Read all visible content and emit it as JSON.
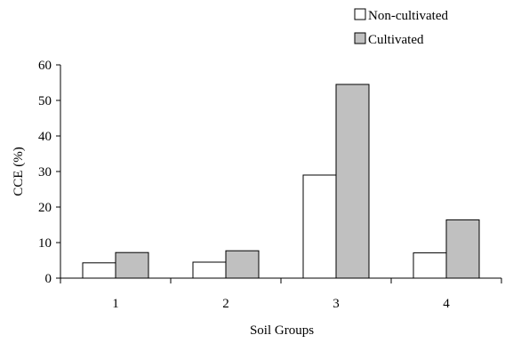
{
  "chart_data": {
    "type": "bar",
    "title": "",
    "xlabel": "Soil Groups",
    "ylabel": "CCE (%)",
    "categories": [
      "1",
      "2",
      "3",
      "4"
    ],
    "ylim": [
      0,
      60
    ],
    "yticks": [
      0,
      10,
      20,
      30,
      40,
      50,
      60
    ],
    "grid": false,
    "legend_position": "top-right",
    "series": [
      {
        "name": "Non-cultivated",
        "color": "#ffffff",
        "values": [
          4.3,
          4.5,
          29,
          7.1
        ]
      },
      {
        "name": "Cultivated",
        "color": "#c0c0c0",
        "values": [
          7.2,
          7.7,
          54.5,
          16.4
        ]
      }
    ]
  }
}
